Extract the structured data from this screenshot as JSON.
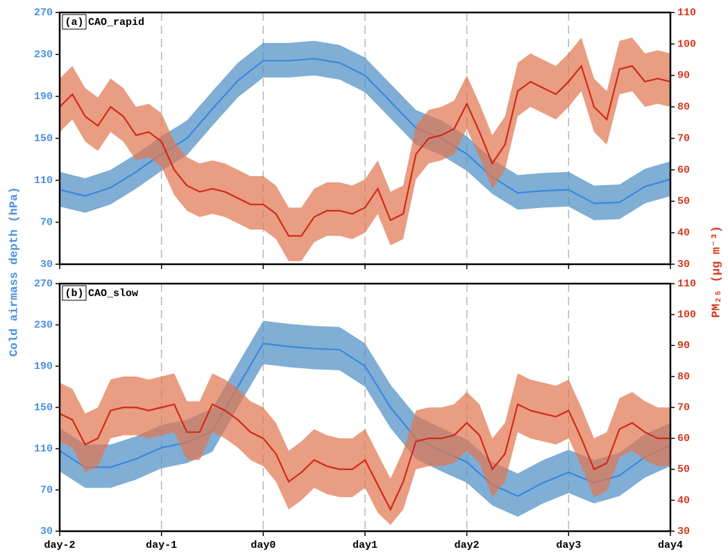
{
  "chart_data": [
    {
      "type": "line",
      "panel_label": "(a)",
      "title": "CAO_rapid",
      "ylabel": "Cold airmass depth (hPa)",
      "y2label": "PM₂₅ (μg m⁻³)",
      "xlim": [
        -2,
        4
      ],
      "xticks": [
        -2,
        -1,
        0,
        1,
        2,
        3,
        4
      ],
      "ylim": [
        30,
        270
      ],
      "yticks": [
        30,
        70,
        110,
        150,
        190,
        230,
        270
      ],
      "y2lim": [
        30,
        110
      ],
      "y2ticks": [
        30,
        40,
        50,
        60,
        70,
        80,
        90,
        100,
        110
      ],
      "series": [
        {
          "color": "#3a87e0",
          "band_color": "#4f8fc4",
          "axis": "y",
          "x": [
            -2,
            -1.75,
            -1.5,
            -1.25,
            -1,
            -0.75,
            -0.5,
            -0.25,
            0,
            0.25,
            0.5,
            0.75,
            1,
            1.25,
            1.5,
            1.75,
            2,
            2.25,
            2.5,
            2.75,
            3,
            3.25,
            3.5,
            3.75,
            4
          ],
          "values": [
            101,
            95,
            103,
            118,
            135,
            150,
            178,
            205,
            224,
            224,
            226,
            222,
            210,
            185,
            160,
            150,
            135,
            113,
            98,
            100,
            101,
            88,
            89,
            104,
            111
          ],
          "lower": [
            85,
            79,
            87,
            102,
            119,
            134,
            162,
            189,
            208,
            208,
            210,
            206,
            194,
            169,
            144,
            134,
            119,
            97,
            82,
            84,
            85,
            72,
            73,
            88,
            95
          ],
          "upper": [
            118,
            112,
            120,
            135,
            152,
            167,
            195,
            222,
            241,
            241,
            243,
            239,
            227,
            202,
            177,
            167,
            152,
            130,
            115,
            117,
            118,
            105,
            106,
            121,
            128
          ]
        },
        {
          "color": "#d02a17",
          "band_color": "#e07752",
          "axis": "y2",
          "x": [
            -2,
            -1.875,
            -1.75,
            -1.625,
            -1.5,
            -1.375,
            -1.25,
            -1.125,
            -1,
            -0.875,
            -0.75,
            -0.625,
            -0.5,
            -0.375,
            -0.25,
            -0.125,
            0,
            0.125,
            0.25,
            0.375,
            0.5,
            0.625,
            0.75,
            0.875,
            1,
            1.125,
            1.25,
            1.375,
            1.5,
            1.625,
            1.75,
            1.875,
            2,
            2.125,
            2.25,
            2.375,
            2.5,
            2.625,
            2.75,
            2.875,
            3,
            3.125,
            3.25,
            3.375,
            3.5,
            3.625,
            3.75,
            3.875,
            4
          ],
          "values": [
            80,
            84,
            77,
            74,
            80,
            77,
            71,
            72,
            69,
            60,
            55,
            53,
            54,
            53,
            51,
            49,
            49,
            46,
            39,
            39,
            45,
            47,
            47,
            46,
            48,
            54,
            44,
            46,
            65,
            70,
            71,
            73,
            81,
            72,
            62,
            68,
            85,
            88,
            86,
            84,
            88,
            93,
            80,
            76,
            92,
            93,
            88,
            89,
            88
          ],
          "lower": [
            72,
            76,
            69,
            66,
            72,
            69,
            63,
            64,
            61,
            52,
            47,
            45,
            46,
            45,
            43,
            41,
            41,
            38,
            31,
            31,
            37,
            39,
            39,
            38,
            40,
            46,
            36,
            38,
            57,
            62,
            63,
            65,
            73,
            64,
            54,
            60,
            77,
            80,
            78,
            76,
            80,
            85,
            72,
            68,
            84,
            85,
            80,
            81,
            80
          ],
          "upper": [
            89,
            93,
            86,
            83,
            89,
            86,
            80,
            81,
            78,
            69,
            64,
            62,
            63,
            62,
            60,
            58,
            58,
            55,
            48,
            48,
            54,
            56,
            56,
            55,
            57,
            63,
            53,
            55,
            74,
            79,
            80,
            82,
            90,
            81,
            71,
            77,
            94,
            97,
            95,
            93,
            97,
            102,
            89,
            85,
            101,
            102,
            97,
            98,
            97
          ]
        }
      ]
    },
    {
      "type": "line",
      "panel_label": "(b)",
      "title": "CAO_slow",
      "xlim": [
        -2,
        4
      ],
      "xticks": [
        {
          "value": -2,
          "label": "day-2"
        },
        {
          "value": -1,
          "label": "day-1"
        },
        {
          "value": 0,
          "label": "day0"
        },
        {
          "value": 1,
          "label": "day1"
        },
        {
          "value": 2,
          "label": "day2"
        },
        {
          "value": 3,
          "label": "day3"
        },
        {
          "value": 4,
          "label": "day4"
        }
      ],
      "ylim": [
        30,
        270
      ],
      "yticks": [
        30,
        70,
        110,
        150,
        190,
        230,
        270
      ],
      "y2lim": [
        30,
        110
      ],
      "y2ticks": [
        30,
        40,
        50,
        60,
        70,
        80,
        90,
        100,
        110
      ],
      "series": [
        {
          "color": "#3a87e0",
          "band_color": "#4f8fc4",
          "axis": "y",
          "x": [
            -2,
            -1.75,
            -1.5,
            -1.25,
            -1,
            -0.75,
            -0.5,
            -0.25,
            0,
            0.25,
            0.5,
            0.75,
            1,
            1.25,
            1.5,
            1.75,
            2,
            2.25,
            2.5,
            2.75,
            3,
            3.25,
            3.5,
            3.75,
            4
          ],
          "values": [
            108,
            92,
            92,
            100,
            111,
            116,
            127,
            170,
            212,
            209,
            207,
            206,
            190,
            150,
            120,
            108,
            97,
            75,
            64,
            77,
            87,
            77,
            84,
            102,
            113
          ],
          "lower": [
            88,
            72,
            72,
            80,
            91,
            96,
            107,
            150,
            192,
            189,
            187,
            186,
            170,
            130,
            100,
            88,
            77,
            55,
            44,
            57,
            67,
            57,
            64,
            82,
            93
          ],
          "upper": [
            130,
            114,
            114,
            122,
            133,
            138,
            149,
            192,
            234,
            231,
            229,
            228,
            212,
            172,
            142,
            130,
            119,
            97,
            86,
            99,
            109,
            99,
            106,
            124,
            135
          ]
        },
        {
          "color": "#d02a17",
          "band_color": "#e07752",
          "axis": "y2",
          "x": [
            -2,
            -1.875,
            -1.75,
            -1.625,
            -1.5,
            -1.375,
            -1.25,
            -1.125,
            -1,
            -0.875,
            -0.75,
            -0.625,
            -0.5,
            -0.375,
            -0.25,
            -0.125,
            0,
            0.125,
            0.25,
            0.375,
            0.5,
            0.625,
            0.75,
            0.875,
            1,
            1.125,
            1.25,
            1.375,
            1.5,
            1.625,
            1.75,
            1.875,
            2,
            2.125,
            2.25,
            2.375,
            2.5,
            2.625,
            2.75,
            2.875,
            3,
            3.125,
            3.25,
            3.375,
            3.5,
            3.625,
            3.75,
            3.875,
            4
          ],
          "values": [
            68,
            66,
            58,
            60,
            69,
            70,
            70,
            69,
            70,
            71,
            62,
            62,
            71,
            69,
            66,
            62,
            60,
            55,
            46,
            49,
            53,
            51,
            50,
            50,
            53,
            45,
            37,
            46,
            59,
            60,
            60,
            61,
            65,
            61,
            50,
            55,
            71,
            69,
            68,
            67,
            69,
            60,
            50,
            52,
            63,
            65,
            62,
            60,
            60
          ],
          "lower": [
            59,
            57,
            49,
            51,
            60,
            61,
            61,
            60,
            61,
            62,
            53,
            53,
            62,
            60,
            57,
            53,
            51,
            46,
            37,
            40,
            44,
            42,
            41,
            41,
            44,
            36,
            32,
            37,
            50,
            51,
            51,
            52,
            56,
            52,
            41,
            46,
            62,
            60,
            59,
            58,
            60,
            51,
            41,
            43,
            54,
            56,
            53,
            51,
            51
          ],
          "upper": [
            78,
            76,
            68,
            70,
            79,
            80,
            80,
            79,
            80,
            81,
            72,
            72,
            81,
            79,
            76,
            72,
            70,
            65,
            56,
            59,
            63,
            61,
            60,
            60,
            63,
            55,
            47,
            56,
            69,
            70,
            70,
            71,
            75,
            71,
            60,
            65,
            81,
            79,
            78,
            77,
            79,
            70,
            60,
            62,
            73,
            75,
            72,
            70,
            70
          ]
        }
      ]
    }
  ]
}
